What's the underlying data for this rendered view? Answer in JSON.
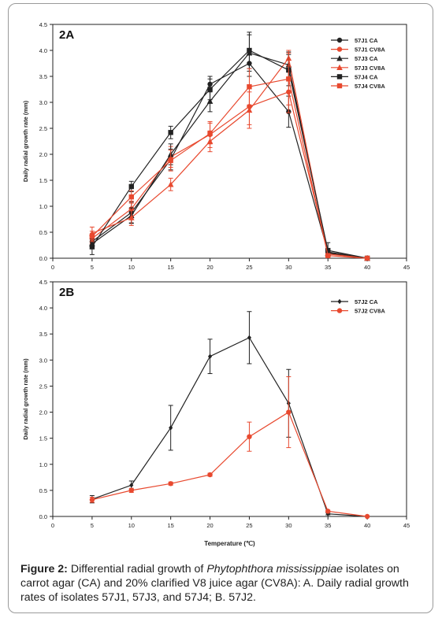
{
  "chart_data": [
    {
      "type": "line",
      "panel_label": "2A",
      "title": "",
      "xlabel": "",
      "ylabel": "Daily radial growth rate (mm)",
      "xlim": [
        0,
        45
      ],
      "ylim": [
        0,
        4.5
      ],
      "xticks": [
        "0",
        "5",
        "10",
        "15",
        "20",
        "25",
        "30",
        "35",
        "40",
        "45"
      ],
      "yticks": [
        "0.0",
        "0.5",
        "1.0",
        "1.5",
        "2.0",
        "2.5",
        "3.0",
        "3.5",
        "4.0",
        "4.5"
      ],
      "legend_position": "top-right",
      "x": [
        5,
        10,
        15,
        20,
        25,
        30,
        35,
        40
      ],
      "series": [
        {
          "name": "57J1 CA",
          "color": "#222222",
          "marker": "circle",
          "values": [
            0.32,
            0.88,
            1.9,
            3.35,
            3.75,
            2.82,
            0.12,
            0.0
          ],
          "errors": [
            0.1,
            0.2,
            0.2,
            0.15,
            0.25,
            0.3,
            0.05,
            0.0
          ]
        },
        {
          "name": "57J1 CV8A",
          "color": "#e8492f",
          "marker": "circle",
          "values": [
            0.38,
            0.95,
            1.95,
            2.38,
            2.92,
            3.2,
            0.1,
            0.0
          ],
          "errors": [
            0.1,
            0.15,
            0.2,
            0.25,
            0.35,
            0.4,
            0.05,
            0.0
          ]
        },
        {
          "name": "57J3 CA",
          "color": "#222222",
          "marker": "triangle",
          "values": [
            0.28,
            0.82,
            2.0,
            3.02,
            3.95,
            3.72,
            0.1,
            0.0
          ],
          "errors": [
            0.1,
            0.15,
            0.2,
            0.2,
            0.35,
            0.25,
            0.05,
            0.0
          ]
        },
        {
          "name": "57J3 CV8A",
          "color": "#e8492f",
          "marker": "triangle",
          "values": [
            0.48,
            0.78,
            1.42,
            2.25,
            2.85,
            3.85,
            0.08,
            0.0
          ],
          "errors": [
            0.12,
            0.15,
            0.12,
            0.2,
            0.35,
            0.15,
            0.05,
            0.0
          ]
        },
        {
          "name": "57J4 CA",
          "color": "#222222",
          "marker": "square",
          "values": [
            0.22,
            1.38,
            2.42,
            3.25,
            4.0,
            3.62,
            0.15,
            0.0
          ],
          "errors": [
            0.15,
            0.1,
            0.12,
            0.2,
            0.35,
            0.3,
            0.15,
            0.0
          ]
        },
        {
          "name": "57J4 CV8A",
          "color": "#e8492f",
          "marker": "square",
          "values": [
            0.42,
            1.18,
            1.88,
            2.4,
            3.3,
            3.45,
            0.05,
            0.0
          ],
          "errors": [
            0.1,
            0.12,
            0.2,
            0.2,
            0.35,
            0.5,
            0.03,
            0.0
          ]
        }
      ]
    },
    {
      "type": "line",
      "panel_label": "2B",
      "title": "",
      "xlabel": "Temperature (℃)",
      "ylabel": "Daily radial growth rate (mm)",
      "xlim": [
        0,
        45
      ],
      "ylim": [
        0,
        4.5
      ],
      "xticks": [
        "0",
        "5",
        "10",
        "15",
        "20",
        "25",
        "30",
        "35",
        "40",
        "45"
      ],
      "yticks": [
        "0.0",
        "0.5",
        "1.0",
        "1.5",
        "2.0",
        "2.5",
        "3.0",
        "3.5",
        "4.0",
        "4.5"
      ],
      "legend_position": "top-right",
      "x": [
        5,
        10,
        15,
        20,
        25,
        30,
        35,
        40
      ],
      "series": [
        {
          "name": "57J2 CA",
          "color": "#222222",
          "marker": "diamond",
          "values": [
            0.33,
            0.6,
            1.7,
            3.07,
            3.43,
            2.17,
            0.05,
            0.0
          ],
          "errors": [
            0.07,
            0.08,
            0.43,
            0.33,
            0.5,
            0.65,
            0.02,
            0.0
          ]
        },
        {
          "name": "57J2 CV8A",
          "color": "#e8492f",
          "marker": "circle",
          "values": [
            0.32,
            0.5,
            0.63,
            0.8,
            1.53,
            2.0,
            0.1,
            0.0
          ],
          "errors": [
            0.05,
            0.04,
            0.03,
            0.03,
            0.28,
            0.68,
            0.02,
            0.0
          ]
        }
      ]
    }
  ],
  "caption": {
    "label": "Figure 2:",
    "part1": " Differential radial growth of ",
    "species": "Phytophthora mississippiae",
    "part2": " isolates on carrot agar (CA) and 20% clarified V8 juice agar (CV8A): A. Daily radial growth rates of isolates 57J1, 57J3, and 57J4; B. 57J2."
  }
}
